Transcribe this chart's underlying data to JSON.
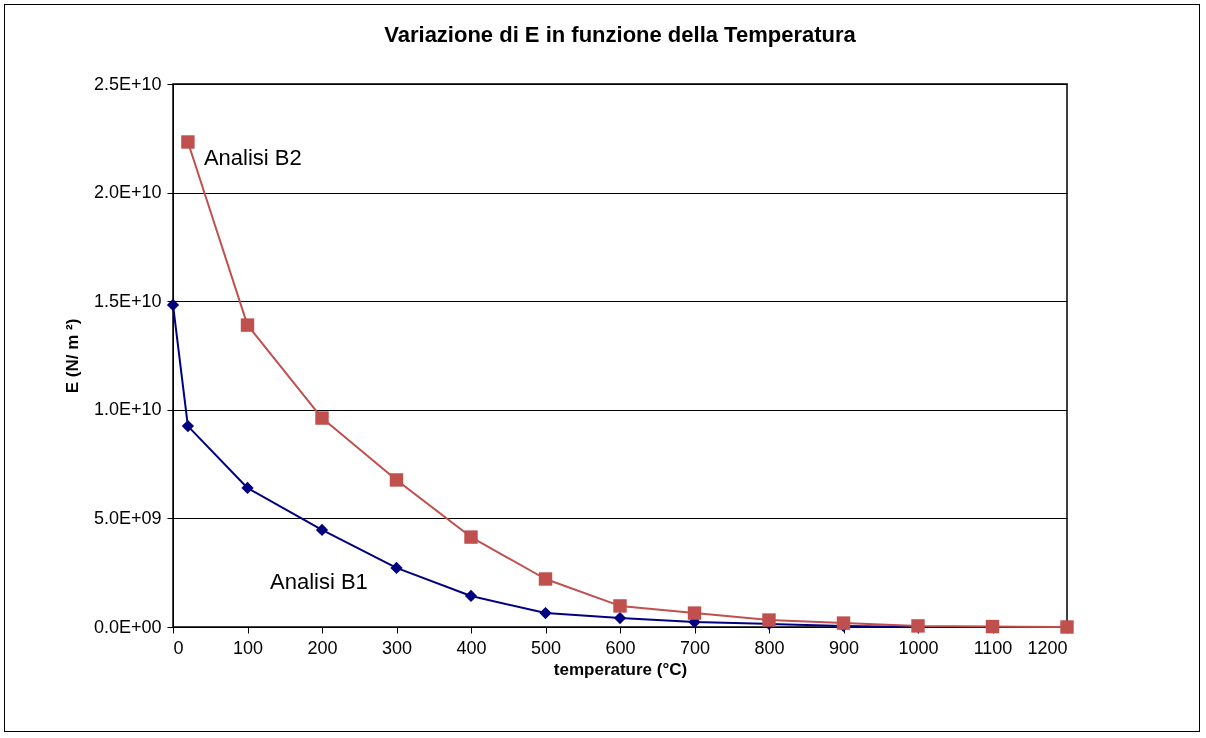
{
  "chart_data": {
    "type": "line",
    "title": "Variazione di E in funzione della Temperatura",
    "xlabel": "temperature (°C)",
    "ylabel": "E (N/ m ²)",
    "xlim": [
      0,
      1200
    ],
    "xticks": [
      0,
      100,
      200,
      300,
      400,
      500,
      600,
      700,
      800,
      900,
      1000,
      1100,
      1200
    ],
    "ylim": [
      0,
      25000000000
    ],
    "yticks": [
      {
        "value": 0,
        "label": "0.0E+00"
      },
      {
        "value": 5000000000,
        "label": "5.0E+09"
      },
      {
        "value": 10000000000,
        "label": "1.0E+10"
      },
      {
        "value": 15000000000,
        "label": "1.5E+10"
      },
      {
        "value": 20000000000,
        "label": "2.0E+10"
      },
      {
        "value": 25000000000,
        "label": "2.5E+10"
      }
    ],
    "grid": "y",
    "legend": false,
    "series": [
      {
        "name": "Analisi B1",
        "color": "#000080",
        "marker": "diamond",
        "x": [
          0,
          20,
          100,
          200,
          300,
          400,
          500,
          600,
          700,
          800,
          900,
          1000
        ],
        "values": [
          14830000000,
          9250000000,
          6400000000,
          4470000000,
          2720000000,
          1430000000,
          640000000,
          410000000,
          230000000,
          140000000,
          50000000,
          0
        ]
      },
      {
        "name": "Analisi B2",
        "color": "#c0504d",
        "marker": "square",
        "x": [
          20,
          100,
          200,
          300,
          400,
          500,
          600,
          700,
          800,
          900,
          1000,
          1100,
          1200
        ],
        "values": [
          22330000000,
          13900000000,
          9620000000,
          6770000000,
          4140000000,
          2210000000,
          970000000,
          640000000,
          320000000,
          180000000,
          50000000,
          20000000,
          0
        ]
      }
    ]
  }
}
